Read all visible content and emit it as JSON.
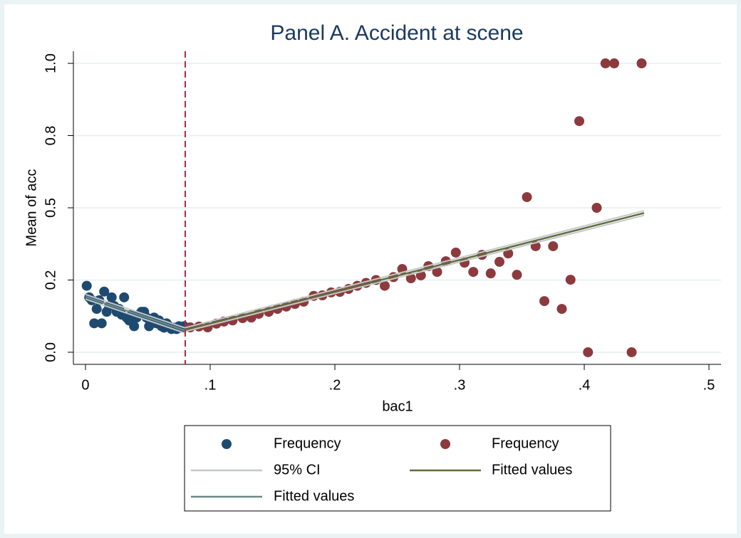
{
  "chart_data": {
    "type": "scatter",
    "title": "Panel A. Accident at scene",
    "xlabel": "bac1",
    "ylabel": "Mean of acc",
    "xlim": [
      -0.0097,
      0.5097
    ],
    "ylim": [
      -0.042,
      1.042
    ],
    "xticks": [
      0,
      {
        "value": 0.1,
        "label": ".1"
      },
      {
        "value": 0.2,
        "label": ".2"
      },
      {
        "value": 0.3,
        "label": ".3"
      },
      {
        "value": 0.4,
        "label": ".4"
      },
      {
        "value": 0.5,
        "label": ".5"
      }
    ],
    "yticks": [
      {
        "value": 0,
        "label": "0.0"
      },
      {
        "value": 0.25,
        "label": "0.2"
      },
      {
        "value": 0.5,
        "label": "0.5"
      },
      {
        "value": 0.75,
        "label": "0.8"
      },
      {
        "value": 1,
        "label": "1.0"
      }
    ],
    "grid": true,
    "xline": 0.08,
    "xline_color": "#b0283a",
    "series": [
      {
        "name": "Frequency",
        "mode": "markers",
        "color": "#1f4a70",
        "x": [
          0.001,
          0.003,
          0.005,
          0.007,
          0.009,
          0.011,
          0.013,
          0.015,
          0.017,
          0.019,
          0.021,
          0.023,
          0.025,
          0.027,
          0.029,
          0.031,
          0.033,
          0.035,
          0.037,
          0.039,
          0.041,
          0.043,
          0.045,
          0.047,
          0.049,
          0.051,
          0.053,
          0.055,
          0.057,
          0.059,
          0.061,
          0.063,
          0.065,
          0.067,
          0.069,
          0.071,
          0.073,
          0.075,
          0.077,
          0.079
        ],
        "values": [
          0.23,
          0.19,
          0.18,
          0.1,
          0.15,
          0.18,
          0.1,
          0.21,
          0.14,
          0.16,
          0.19,
          0.16,
          0.14,
          0.15,
          0.13,
          0.19,
          0.12,
          0.11,
          0.13,
          0.09,
          0.12,
          0.13,
          0.14,
          0.14,
          0.12,
          0.09,
          0.11,
          0.12,
          0.1,
          0.11,
          0.09,
          0.085,
          0.1,
          0.09,
          0.08,
          0.085,
          0.08,
          0.09,
          0.085,
          0.09
        ]
      },
      {
        "name": "Frequency",
        "mode": "markers",
        "color": "#8c3a3e",
        "x": [
          0.084,
          0.091,
          0.098,
          0.105,
          0.111,
          0.118,
          0.126,
          0.133,
          0.139,
          0.147,
          0.154,
          0.161,
          0.168,
          0.175,
          0.183,
          0.19,
          0.197,
          0.204,
          0.211,
          0.218,
          0.225,
          0.233,
          0.24,
          0.247,
          0.254,
          0.261,
          0.269,
          0.275,
          0.282,
          0.289,
          0.297,
          0.304,
          0.311,
          0.318,
          0.325,
          0.332,
          0.339,
          0.346,
          0.354,
          0.361,
          0.368,
          0.375,
          0.382,
          0.389,
          0.396,
          0.403,
          0.41,
          0.417,
          0.424,
          0.438,
          0.446
        ],
        "values": [
          0.086,
          0.089,
          0.086,
          0.099,
          0.106,
          0.11,
          0.118,
          0.12,
          0.133,
          0.14,
          0.15,
          0.158,
          0.167,
          0.175,
          0.195,
          0.197,
          0.207,
          0.209,
          0.219,
          0.23,
          0.24,
          0.25,
          0.23,
          0.26,
          0.288,
          0.256,
          0.266,
          0.298,
          0.278,
          0.315,
          0.345,
          0.31,
          0.278,
          0.337,
          0.273,
          0.313,
          0.342,
          0.268,
          0.537,
          0.367,
          0.177,
          0.367,
          0.15,
          0.251,
          0.8,
          0,
          0.5,
          1,
          1,
          0,
          1
        ]
      },
      {
        "name": "95% CI",
        "mode": "ci",
        "color": "#c4c8c8",
        "x": [
          0,
          0.08,
          0.08,
          0.08,
          0.448
        ],
        "upper": [
          0.2,
          0.084,
          null,
          0.085,
          0.49
        ],
        "lower": [
          0.184,
          0.066,
          null,
          0.072,
          0.474
        ]
      },
      {
        "name": "Fitted values",
        "mode": "line",
        "color": "#5f6b3f",
        "x": [
          0.08,
          0.448
        ],
        "values": [
          0.078,
          0.482
        ]
      },
      {
        "name": "Fitted values",
        "mode": "line",
        "color": "#6f8a86",
        "x": [
          0,
          0.08
        ],
        "values": [
          0.192,
          0.075
        ]
      }
    ]
  }
}
